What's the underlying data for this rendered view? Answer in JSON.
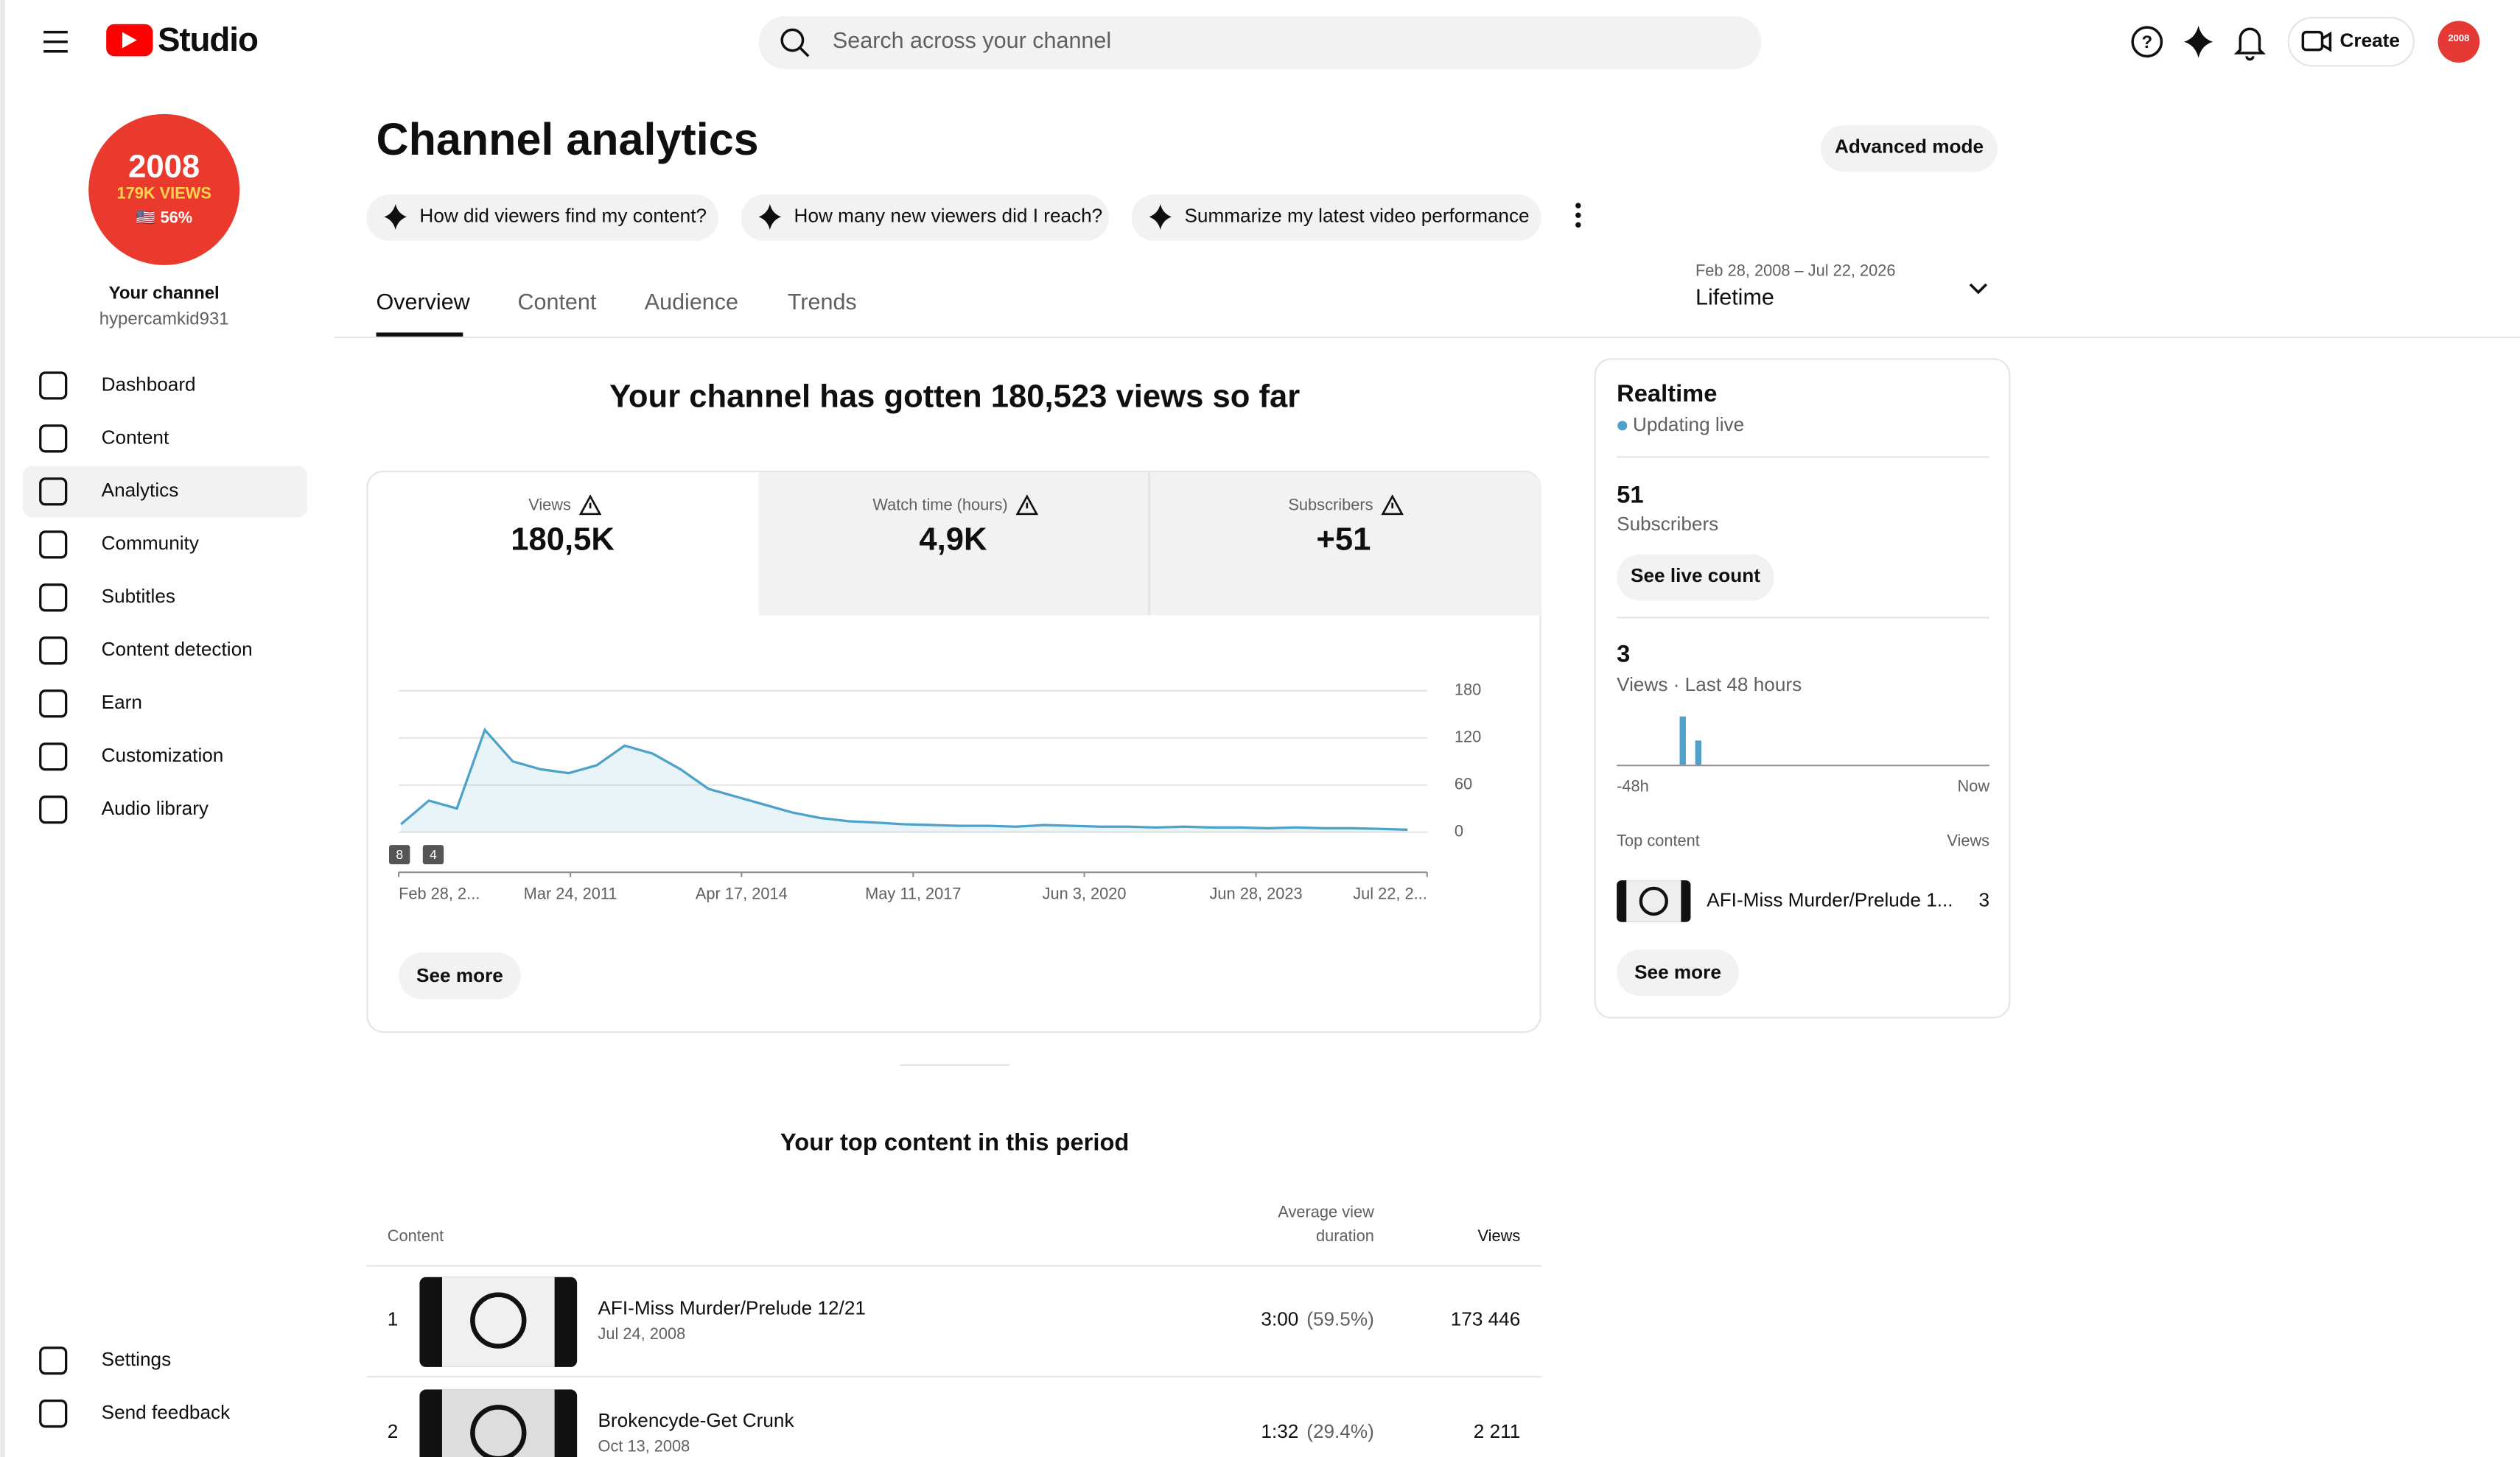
{
  "header": {
    "logo": "Studio",
    "search_placeholder": "Search across your channel",
    "create": "Create"
  },
  "sidebar": {
    "avatar": [
      "2008",
      "179K VIEWS",
      "🇺🇸 56%"
    ],
    "channel_label": "Your channel",
    "handle": "hypercamkid931",
    "nav": [
      "Dashboard",
      "Content",
      "Analytics",
      "Community",
      "Subtitles",
      "Content detection",
      "Earn",
      "Customization",
      "Audio library"
    ],
    "footer_nav": [
      "Settings",
      "Send feedback"
    ]
  },
  "main": {
    "title": "Channel analytics",
    "advanced_mode": "Advanced mode",
    "chips": [
      "How did viewers find my content?",
      "How many new viewers did I reach?",
      "Summarize my latest video performance"
    ],
    "tabs": [
      "Overview",
      "Content",
      "Audience",
      "Trends"
    ],
    "date_range": {
      "range": "Feb 28, 2008 – Jul 22, 2026",
      "label": "Lifetime"
    },
    "headline": "Your channel has gotten 180,523 views so far",
    "metrics": [
      {
        "label": "Views",
        "value": "180,5K"
      },
      {
        "label": "Watch time (hours)",
        "value": "4,9K"
      },
      {
        "label": "Subscribers",
        "value": "+51"
      }
    ],
    "see_more": "See more",
    "top_content": {
      "title": "Your top content in this period",
      "columns": {
        "content": "Content",
        "avg_duration": [
          "Average view",
          "duration"
        ],
        "views": "Views"
      },
      "rows": [
        {
          "rank": "1",
          "title": "AFI-Miss Murder/Prelude 12/21",
          "date": "Jul 24, 2008",
          "duration": "3:00",
          "percent": "(59.5%)",
          "views": "173 446"
        },
        {
          "rank": "2",
          "title": "Brokencyde-Get Crunk",
          "date": "Oct 13, 2008",
          "duration": "1:32",
          "percent": "(29.4%)",
          "views": "2 211"
        }
      ]
    }
  },
  "realtime": {
    "title": "Realtime",
    "status": "Updating live",
    "subscribers": {
      "value": "51",
      "label": "Subscribers",
      "button": "See live count"
    },
    "views": {
      "value": "3",
      "label": "Views · Last 48 hours"
    },
    "top_content": {
      "label": "Top content",
      "views_label": "Views",
      "items": [
        {
          "title": "AFI-Miss Murder/Prelude 1...",
          "views": "3"
        }
      ]
    },
    "see_more": "See more"
  },
  "chart_data": [
    {
      "type": "line",
      "color": "#4ea1c9",
      "annotations": [
        "8",
        "4"
      ],
      "x": [
        2008.2,
        2008.7,
        2009.2,
        2009.7,
        2010.2,
        2010.7,
        2011.2,
        2011.7,
        2012.2,
        2012.7,
        2013.2,
        2013.7,
        2014.2,
        2014.7,
        2015.2,
        2015.7,
        2016.2,
        2016.7,
        2017.2,
        2017.7,
        2018.2,
        2018.7,
        2019.2,
        2019.7,
        2020.2,
        2020.7,
        2021.2,
        2021.7,
        2022.2,
        2022.7,
        2023.2,
        2023.7,
        2024.2,
        2024.7,
        2025.2,
        2025.7,
        2026.2
      ],
      "values": [
        10,
        40,
        30,
        130,
        90,
        80,
        75,
        85,
        110,
        100,
        80,
        55,
        45,
        35,
        25,
        18,
        14,
        12,
        10,
        9,
        8,
        8,
        7,
        9,
        8,
        7,
        7,
        6,
        7,
        6,
        6,
        5,
        6,
        5,
        5,
        4,
        3
      ],
      "xlim": [
        2008.16,
        2026.55
      ],
      "xticks": [
        {
          "value": 2008.16,
          "label": "Feb 28, 2..."
        },
        {
          "value": 2011.23,
          "label": "Mar 24, 2011"
        },
        {
          "value": 2014.29,
          "label": "Apr 17, 2014"
        },
        {
          "value": 2017.36,
          "label": "May 11, 2017"
        },
        {
          "value": 2020.42,
          "label": "Jun 3, 2020"
        },
        {
          "value": 2023.49,
          "label": "Jun 28, 2023"
        },
        {
          "value": 2026.55,
          "label": "Jul 22, 2..."
        }
      ],
      "ylim": [
        0,
        180
      ],
      "yticks": [
        0,
        60,
        120,
        180
      ],
      "grid": true
    },
    {
      "type": "bar",
      "color": "#4ea1c9",
      "categories": [
        "-48h",
        null,
        null,
        null,
        null,
        null,
        null,
        null,
        null,
        null,
        null,
        null,
        null,
        null,
        null,
        null,
        null,
        null,
        null,
        null,
        null,
        null,
        null,
        null,
        null,
        null,
        null,
        null,
        null,
        null,
        null,
        null,
        null,
        null,
        null,
        null,
        null,
        null,
        null,
        null,
        null,
        null,
        null,
        null,
        null,
        null,
        null,
        "Now"
      ],
      "values": [
        0,
        0,
        0,
        0,
        0,
        0,
        0,
        0,
        2,
        0,
        1,
        0,
        0,
        0,
        0,
        0,
        0,
        0,
        0,
        0,
        0,
        0,
        0,
        0,
        0,
        0,
        0,
        0,
        0,
        0,
        0,
        0,
        0,
        0,
        0,
        0,
        0,
        0,
        0,
        0,
        0,
        0,
        0,
        0,
        0,
        0,
        0,
        0
      ]
    }
  ]
}
